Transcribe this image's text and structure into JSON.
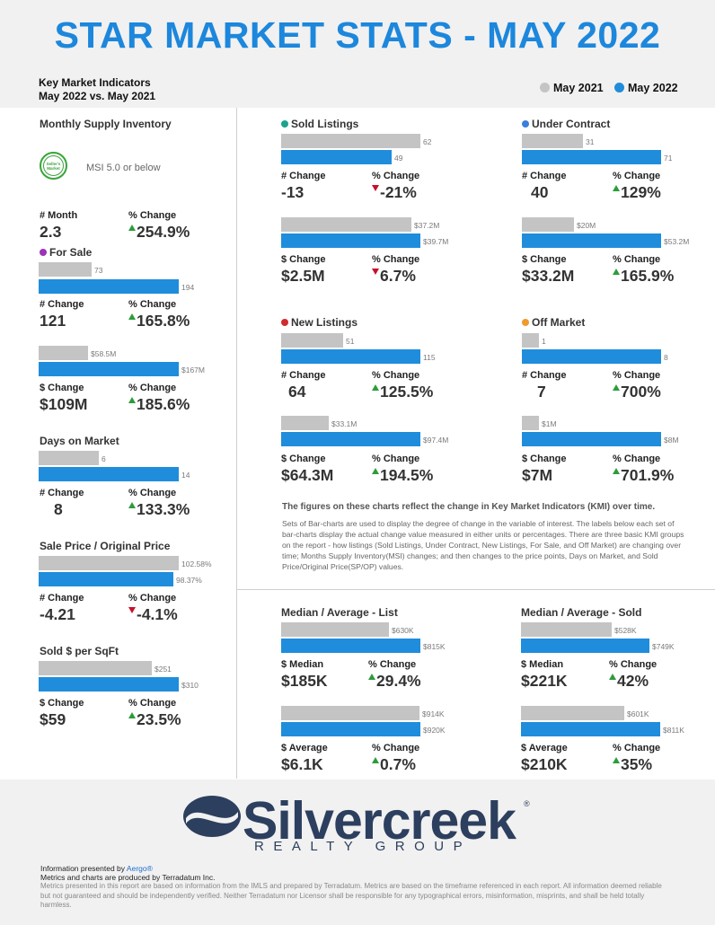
{
  "header": {
    "title": "STAR MARKET STATS - MAY 2022",
    "kmi_line1": "Key Market Indicators",
    "kmi_line2": "May 2022 vs. May 2021",
    "legend_prev": "May 2021",
    "legend_curr": "May 2022",
    "color_prev": "#c4c4c4",
    "color_curr": "#1f8ddb"
  },
  "msi": {
    "title": "Monthly Supply Inventory",
    "badge_line1": "Seller's",
    "badge_line2": "Market",
    "badge_text": "MSI 5.0 or below",
    "month_label": "# Month",
    "month_value": "2.3",
    "pct_label": "% Change",
    "pct_value": "254.9%"
  },
  "for_sale": {
    "title": "For Sale",
    "dot_color": "#9b34b8",
    "count_prev": "73",
    "count_curr": "194",
    "count_prev_value": 73,
    "count_curr_value": 194,
    "num_label": "# Change",
    "num_value": "121",
    "pct_label": "% Change",
    "pct_value": "165.8%",
    "dollar_prev": "$58.5M",
    "dollar_curr": "$167M",
    "dollar_prev_value": 58.5,
    "dollar_curr_value": 167,
    "dollar_label": "$ Change",
    "dollar_value": "$109M",
    "dollar_pct_label": "% Change",
    "dollar_pct_value": "185.6%"
  },
  "days_on_market": {
    "title": "Days on Market",
    "prev": "6",
    "curr": "14",
    "prev_value": 6,
    "curr_value": 14,
    "num_label": "# Change",
    "num_value": "8",
    "pct_label": "% Change",
    "pct_value": "133.3%"
  },
  "sale_price": {
    "title": "Sale Price / Original Price",
    "prev": "102.58%",
    "curr": "98.37%",
    "prev_value": 102.58,
    "curr_value": 98.37,
    "num_label": "# Change",
    "num_value": "-4.21",
    "pct_label": "% Change",
    "pct_value": "-4.1%"
  },
  "sold_sqft": {
    "title": "Sold $ per SqFt",
    "prev": "$251",
    "curr": "$310",
    "prev_value": 251,
    "curr_value": 310,
    "num_label": "$ Change",
    "num_value": "$59",
    "pct_label": "% Change",
    "pct_value": "23.5%"
  },
  "sold_listings": {
    "title": "Sold Listings",
    "dot_color": "#1ba38b",
    "count_prev": "62",
    "count_curr": "49",
    "count_prev_value": 62,
    "count_curr_value": 49,
    "num_label": "# Change",
    "num_value": "-13",
    "pct_label": "% Change",
    "pct_value": "-21%",
    "dollar_prev": "$37.2M",
    "dollar_curr": "$39.7M",
    "dollar_prev_value": 37.2,
    "dollar_curr_value": 39.7,
    "dollar_label": "$ Change",
    "dollar_value": "$2.5M",
    "dollar_pct_label": "% Change",
    "dollar_pct_value": "6.7%"
  },
  "under_contract": {
    "title": "Under Contract",
    "dot_color": "#3a7fd8",
    "count_prev": "31",
    "count_curr": "71",
    "count_prev_value": 31,
    "count_curr_value": 71,
    "num_label": "# Change",
    "num_value": "40",
    "pct_label": "% Change",
    "pct_value": "129%",
    "dollar_prev": "$20M",
    "dollar_curr": "$53.2M",
    "dollar_prev_value": 20,
    "dollar_curr_value": 53.2,
    "dollar_label": "$ Change",
    "dollar_value": "$33.2M",
    "dollar_pct_label": "% Change",
    "dollar_pct_value": "165.9%"
  },
  "new_listings": {
    "title": "New Listings",
    "dot_color": "#d22b2b",
    "count_prev": "51",
    "count_curr": "115",
    "count_prev_value": 51,
    "count_curr_value": 115,
    "num_label": "# Change",
    "num_value": "64",
    "pct_label": "% Change",
    "pct_value": "125.5%",
    "dollar_prev": "$33.1M",
    "dollar_curr": "$97.4M",
    "dollar_prev_value": 33.1,
    "dollar_curr_value": 97.4,
    "dollar_label": "$ Change",
    "dollar_value": "$64.3M",
    "dollar_pct_label": "% Change",
    "dollar_pct_value": "194.5%"
  },
  "off_market": {
    "title": "Off Market",
    "dot_color": "#ef9a2c",
    "count_prev": "1",
    "count_curr": "8",
    "count_prev_value": 1,
    "count_curr_value": 8,
    "num_label": "# Change",
    "num_value": "7",
    "pct_label": "% Change",
    "pct_value": "700%",
    "dollar_prev": "$1M",
    "dollar_curr": "$8M",
    "dollar_prev_value": 1,
    "dollar_curr_value": 8,
    "dollar_label": "$ Change",
    "dollar_value": "$7M",
    "dollar_pct_label": "% Change",
    "dollar_pct_value": "701.9%"
  },
  "notes": {
    "bold": "The figures on these charts reflect the change in Key Market Indicators (KMI) over time.",
    "body": "Sets of Bar-charts are used to display the degree of change in the variable of interest. The labels below each set of bar-charts display the actual change value measured in either units or percentages. There are three basic KMI groups on the report - how listings (Sold Listings, Under Contract, New Listings, For Sale, and Off Market) are changing over time; Months Supply Inventory(MSI) changes; and then changes to the price points, Days on Market, and Sold Price/Original Price(SP/OP) values."
  },
  "median_list": {
    "title": "Median / Average - List",
    "med_prev": "$630K",
    "med_curr": "$815K",
    "med_prev_value": 630,
    "med_curr_value": 815,
    "med_label": "$ Median",
    "med_value": "$185K",
    "med_pct_label": "% Change",
    "med_pct_value": "29.4%",
    "avg_prev": "$914K",
    "avg_curr": "$920K",
    "avg_prev_value": 914,
    "avg_curr_value": 920,
    "avg_label": "$ Average",
    "avg_value": "$6.1K",
    "avg_pct_label": "% Change",
    "avg_pct_value": "0.7%"
  },
  "median_sold": {
    "title": "Median / Average - Sold",
    "med_prev": "$528K",
    "med_curr": "$749K",
    "med_prev_value": 528,
    "med_curr_value": 749,
    "med_label": "$ Median",
    "med_value": "$221K",
    "med_pct_label": "% Change",
    "med_pct_value": "42%",
    "avg_prev": "$601K",
    "avg_curr": "$811K",
    "avg_prev_value": 601,
    "avg_curr_value": 811,
    "avg_label": "$ Average",
    "avg_value": "$210K",
    "avg_pct_label": "% Change",
    "avg_pct_value": "35%"
  },
  "footer": {
    "logo_word": "Silvercreek",
    "logo_sub": "REALTY GROUP",
    "logo_reg": "®",
    "presented_prefix": "Information presented by ",
    "presented_link": "Aergo®",
    "produced": "Metrics and charts are produced by Terradatum Inc.",
    "disclaimer": "Metrics presented in this report are based on information from the IMLS and prepared by Terradatum. Metrics are based on the timeframe referenced in each report. All information deemed reliable but not guaranteed and should be independently verified. Neither Terradatum nor Licensor shall be responsible for any typographical errors, misinformation, misprints, and shall be held totally harmless."
  }
}
